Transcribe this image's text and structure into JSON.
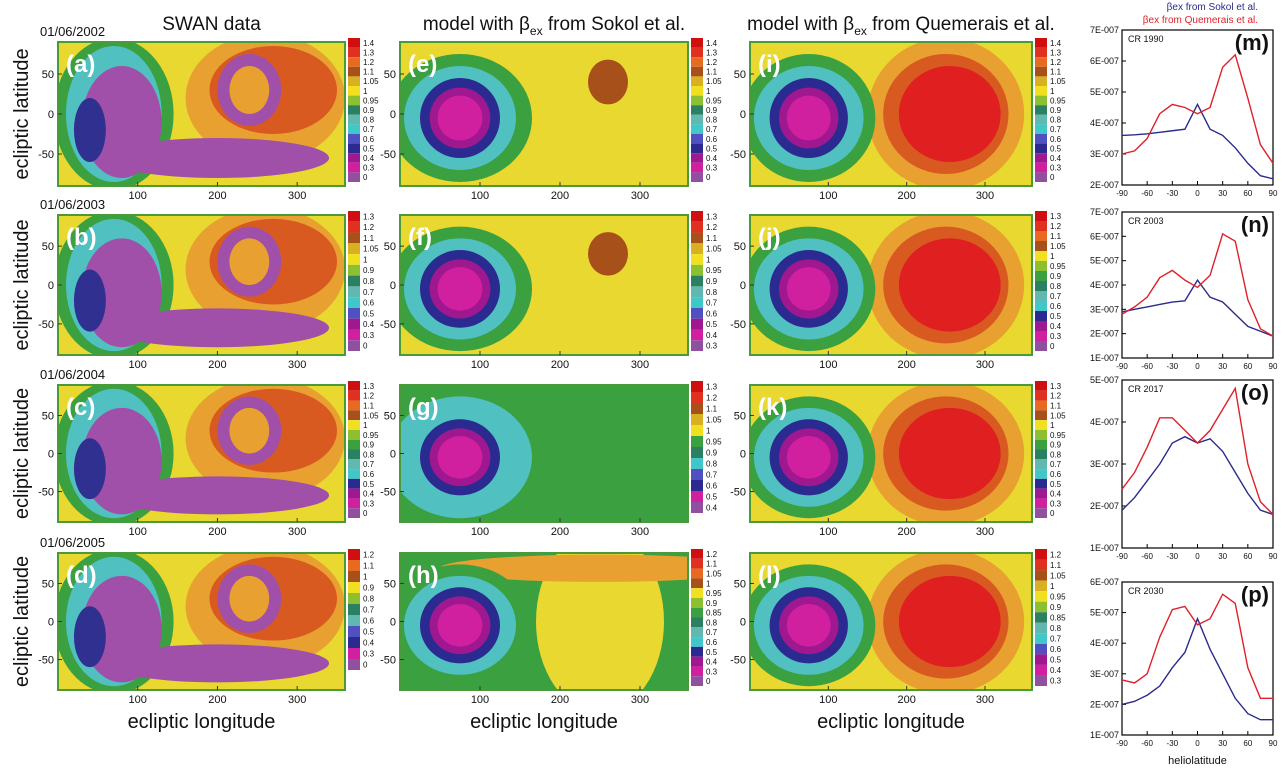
{
  "column_titles": [
    {
      "text": "SWAN data",
      "x_label": "ecliptic longitude"
    },
    {
      "text": "model with β",
      "sub": "ex",
      "post": " from Sokol et al.",
      "x_label": "ecliptic longitude"
    },
    {
      "text": "model with β",
      "sub": "ex",
      "post": " from Quemerais et al.",
      "x_label": "ecliptic longitude"
    }
  ],
  "map_axes": {
    "xlim": [
      0,
      360
    ],
    "ylim": [
      -90,
      90
    ],
    "xticks": [
      100,
      200,
      300
    ],
    "yticks": [
      50,
      0,
      -50
    ]
  },
  "rows": [
    {
      "date": "01/06/2002",
      "y_label": "ecliptic latitude",
      "panels": [
        {
          "letter": "(a)",
          "colorbar": [
            1.4,
            1.3,
            1.2,
            1.1,
            1.05,
            1,
            0.95,
            0.9,
            0.8,
            0.7,
            0.6,
            0.5,
            0.4,
            0.3,
            0
          ]
        },
        {
          "letter": "(e)",
          "colorbar": [
            1.4,
            1.3,
            1.2,
            1.1,
            1.05,
            1,
            0.95,
            0.9,
            0.8,
            0.7,
            0.6,
            0.5,
            0.4,
            0.3,
            0
          ]
        },
        {
          "letter": "(i)",
          "colorbar": [
            1.4,
            1.3,
            1.2,
            1.1,
            1.05,
            1,
            0.95,
            0.9,
            0.8,
            0.7,
            0.6,
            0.5,
            0.4,
            0.3,
            0
          ]
        }
      ]
    },
    {
      "date": "01/06/2003",
      "y_label": "ecliptic latitude",
      "panels": [
        {
          "letter": "(b)",
          "colorbar": [
            1.3,
            1.2,
            1.1,
            1.05,
            1,
            0.9,
            0.8,
            0.7,
            0.6,
            0.5,
            0.4,
            0.3,
            0
          ]
        },
        {
          "letter": "(f)",
          "colorbar": [
            1.3,
            1.2,
            1.1,
            1.05,
            1,
            0.95,
            0.9,
            0.8,
            0.7,
            0.6,
            0.5,
            0.4,
            0.3
          ]
        },
        {
          "letter": "(j)",
          "colorbar": [
            1.3,
            1.2,
            1.1,
            1.05,
            1,
            0.95,
            0.9,
            0.8,
            0.7,
            0.6,
            0.5,
            0.4,
            0.3,
            0
          ]
        }
      ]
    },
    {
      "date": "01/06/2004",
      "y_label": "ecliptic latitude",
      "panels": [
        {
          "letter": "(c)",
          "colorbar": [
            1.3,
            1.2,
            1.1,
            1.05,
            1,
            0.95,
            0.9,
            0.8,
            0.7,
            0.6,
            0.5,
            0.4,
            0.3,
            0
          ]
        },
        {
          "letter": "(g)",
          "colorbar": [
            1.3,
            1.2,
            1.1,
            1.05,
            1,
            0.95,
            0.9,
            0.8,
            0.7,
            0.6,
            0.5,
            0.4
          ]
        },
        {
          "letter": "(k)",
          "colorbar": [
            1.3,
            1.2,
            1.1,
            1.05,
            1,
            0.95,
            0.9,
            0.8,
            0.7,
            0.6,
            0.5,
            0.4,
            0.3,
            0
          ]
        }
      ]
    },
    {
      "date": "01/06/2005",
      "y_label": "ecliptic latitude",
      "panels": [
        {
          "letter": "(d)",
          "colorbar": [
            1.2,
            1.1,
            1,
            0.9,
            0.8,
            0.7,
            0.6,
            0.5,
            0.4,
            0.3,
            0
          ]
        },
        {
          "letter": "(h)",
          "colorbar": [
            1.2,
            1.1,
            1.05,
            1,
            0.95,
            0.9,
            0.85,
            0.8,
            0.7,
            0.6,
            0.5,
            0.4,
            0.3,
            0
          ]
        },
        {
          "letter": "(l)",
          "colorbar": [
            1.2,
            1.1,
            1.05,
            1,
            0.95,
            0.9,
            0.85,
            0.8,
            0.7,
            0.6,
            0.5,
            0.4,
            0.3
          ]
        }
      ]
    }
  ],
  "chart_data": [
    {
      "type": "line",
      "annotation": "CR 1990",
      "label": "(m)",
      "x": [
        -90,
        -75,
        -60,
        -45,
        -30,
        -15,
        0,
        15,
        30,
        45,
        60,
        75,
        90
      ],
      "xlim": [
        -90,
        90
      ],
      "xticks": [
        -90,
        -60,
        -30,
        0,
        30,
        60,
        90
      ],
      "ylim": [
        2e-07,
        7e-07
      ],
      "yticks": [
        {
          "value": 2e-07,
          "label": "2E-007"
        },
        {
          "value": 3e-07,
          "label": "3E-007"
        },
        {
          "value": 4e-07,
          "label": "4E-007"
        },
        {
          "value": 5e-07,
          "label": "5E-007"
        },
        {
          "value": 6e-07,
          "label": "6E-007"
        },
        {
          "value": 7e-07,
          "label": "7E-007"
        }
      ],
      "series": [
        {
          "name": "βex from Sokol et al.",
          "color": "#2b2b8c",
          "values": [
            3.6e-07,
            3.62e-07,
            3.65e-07,
            3.7e-07,
            3.75e-07,
            3.8e-07,
            4.6e-07,
            3.8e-07,
            3.6e-07,
            3.2e-07,
            2.7e-07,
            2.3e-07,
            2.2e-07
          ]
        },
        {
          "name": "βex from Quemerais et al.",
          "color": "#e0202a",
          "values": [
            3e-07,
            3.1e-07,
            3.5e-07,
            4.3e-07,
            4.6e-07,
            4.5e-07,
            4.3e-07,
            4.5e-07,
            5.8e-07,
            6.2e-07,
            4.8e-07,
            3.3e-07,
            2.7e-07
          ]
        }
      ]
    },
    {
      "type": "line",
      "annotation": "CR 2003",
      "label": "(n)",
      "x": [
        -90,
        -75,
        -60,
        -45,
        -30,
        -15,
        0,
        15,
        30,
        45,
        60,
        75,
        90
      ],
      "xlim": [
        -90,
        90
      ],
      "xticks": [
        -90,
        -60,
        -30,
        0,
        30,
        60,
        90
      ],
      "ylim": [
        1e-07,
        7e-07
      ],
      "yticks": [
        {
          "value": 1e-07,
          "label": "1E-007"
        },
        {
          "value": 2e-07,
          "label": "2E-007"
        },
        {
          "value": 3e-07,
          "label": "3E-007"
        },
        {
          "value": 4e-07,
          "label": "4E-007"
        },
        {
          "value": 5e-07,
          "label": "5E-007"
        },
        {
          "value": 6e-07,
          "label": "6E-007"
        },
        {
          "value": 7e-07,
          "label": "7E-007"
        }
      ],
      "series": [
        {
          "name": "βex from Sokol et al.",
          "color": "#2b2b8c",
          "values": [
            2.9e-07,
            3e-07,
            3.1e-07,
            3.2e-07,
            3.3e-07,
            3.35e-07,
            4.2e-07,
            3.5e-07,
            3.3e-07,
            2.8e-07,
            2.3e-07,
            2.1e-07,
            1.9e-07
          ]
        },
        {
          "name": "βex from Quemerais et al.",
          "color": "#e0202a",
          "values": [
            2.8e-07,
            3.1e-07,
            3.5e-07,
            4.3e-07,
            4.6e-07,
            4.2e-07,
            3.9e-07,
            4.4e-07,
            6.1e-07,
            5.8e-07,
            3.4e-07,
            2.2e-07,
            1.9e-07
          ]
        }
      ]
    },
    {
      "type": "line",
      "annotation": "CR 2017",
      "label": "(o)",
      "x": [
        -90,
        -75,
        -60,
        -45,
        -30,
        -15,
        0,
        15,
        30,
        45,
        60,
        75,
        90
      ],
      "xlim": [
        -90,
        90
      ],
      "xticks": [
        -90,
        -60,
        -30,
        0,
        30,
        60,
        90
      ],
      "ylim": [
        1e-07,
        5e-07
      ],
      "yticks": [
        {
          "value": 1e-07,
          "label": "1E-007"
        },
        {
          "value": 2e-07,
          "label": "2E-007"
        },
        {
          "value": 3e-07,
          "label": "3E-007"
        },
        {
          "value": 4e-07,
          "label": "4E-007"
        },
        {
          "value": 5e-07,
          "label": "5E-007"
        }
      ],
      "series": [
        {
          "name": "βex from Sokol et al.",
          "color": "#2b2b8c",
          "values": [
            1.9e-07,
            2.2e-07,
            2.6e-07,
            3e-07,
            3.5e-07,
            3.65e-07,
            3.5e-07,
            3.6e-07,
            3.3e-07,
            2.8e-07,
            2.3e-07,
            1.9e-07,
            1.8e-07
          ]
        },
        {
          "name": "βex from Quemerais et al.",
          "color": "#e0202a",
          "values": [
            2.4e-07,
            2.8e-07,
            3.4e-07,
            4.1e-07,
            4.1e-07,
            3.8e-07,
            3.5e-07,
            3.8e-07,
            4.3e-07,
            4.8e-07,
            3e-07,
            2.1e-07,
            1.8e-07
          ]
        }
      ]
    },
    {
      "type": "line",
      "annotation": "CR 2030",
      "label": "(p)",
      "x_label": "heliolatitude",
      "x": [
        -90,
        -75,
        -60,
        -45,
        -30,
        -15,
        0,
        15,
        30,
        45,
        60,
        75,
        90
      ],
      "xlim": [
        -90,
        90
      ],
      "xticks": [
        -90,
        -60,
        -30,
        0,
        30,
        60,
        90
      ],
      "ylim": [
        1e-07,
        6e-07
      ],
      "yticks": [
        {
          "value": 1e-07,
          "label": "1E-007"
        },
        {
          "value": 2e-07,
          "label": "2E-007"
        },
        {
          "value": 3e-07,
          "label": "3E-007"
        },
        {
          "value": 4e-07,
          "label": "4E-007"
        },
        {
          "value": 5e-07,
          "label": "5E-007"
        },
        {
          "value": 6e-07,
          "label": "6E-007"
        }
      ],
      "series": [
        {
          "name": "βex from Sokol et al.",
          "color": "#2b2b8c",
          "values": [
            2e-07,
            2.1e-07,
            2.3e-07,
            2.6e-07,
            3.2e-07,
            3.7e-07,
            4.8e-07,
            3.8e-07,
            3e-07,
            2.2e-07,
            1.7e-07,
            1.5e-07,
            1.5e-07
          ]
        },
        {
          "name": "βex from Quemerais et al.",
          "color": "#e0202a",
          "values": [
            2.8e-07,
            2.7e-07,
            3e-07,
            4.2e-07,
            5.1e-07,
            5.2e-07,
            4.6e-07,
            4.8e-07,
            5.6e-07,
            5.3e-07,
            3.2e-07,
            2.2e-07,
            2.2e-07
          ]
        }
      ]
    }
  ]
}
